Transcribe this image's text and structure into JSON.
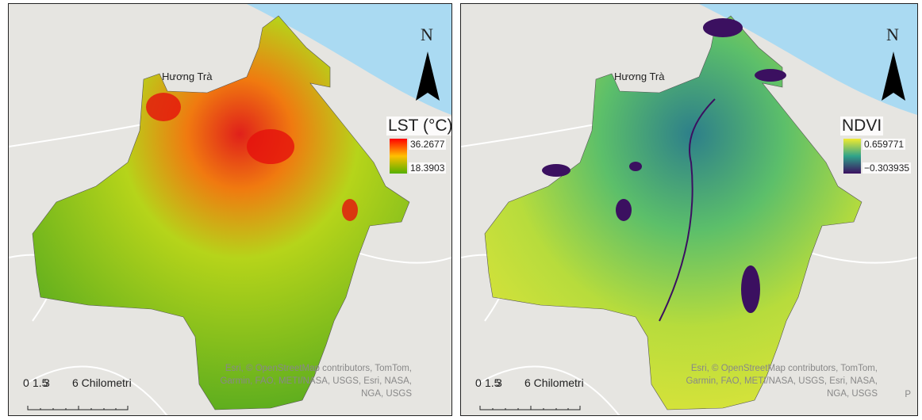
{
  "panels": [
    {
      "place_label": "Hương Trà",
      "north": "N",
      "legend": {
        "title": "LST (°C)",
        "max": "36.2677",
        "min": "18.3903"
      },
      "scale": {
        "ticks": [
          "0",
          "1.5",
          "3"
        ],
        "end": "6 Chilometri"
      },
      "attribution": "Esri, © OpenStreetMap contributors, TomTom, Garmin, FAO, METI/NASA, USGS, Esri, NASA, NGA, USGS"
    },
    {
      "place_label": "Hương Trà",
      "north": "N",
      "legend": {
        "title": "NDVI",
        "max": "0.659771",
        "min": "−0.303935"
      },
      "scale": {
        "ticks": [
          "0",
          "1.5",
          "3"
        ],
        "end": "6 Chilometri"
      },
      "attribution": "Esri, © OpenStreetMap contributors, TomTom, Garmin, FAO, METI/NASA, USGS, Esri, NASA, NGA, USGS",
      "edge_label": "P"
    }
  ]
}
